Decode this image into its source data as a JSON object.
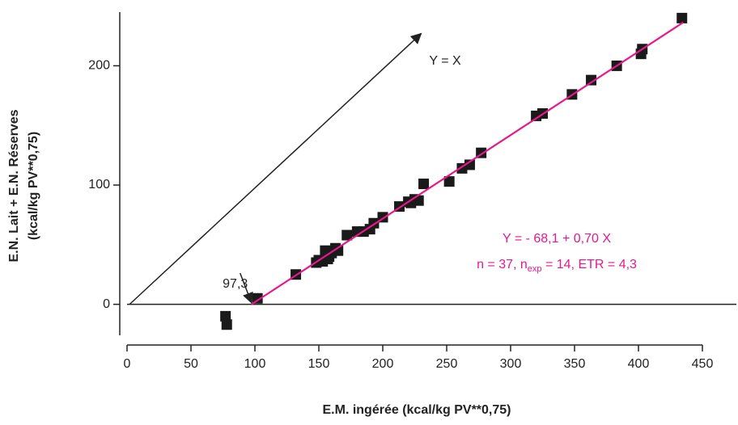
{
  "chart_data": {
    "type": "scatter",
    "x_label": "E.M. ingérée (kcal/kg PV**0,75)",
    "y_label": [
      "E.N. Lait + E.N. Réserves",
      "(kcal/kg PV**0,75)"
    ],
    "xlim": [
      0,
      450
    ],
    "ylim": [
      -26,
      245
    ],
    "xticks": [
      0,
      50,
      100,
      150,
      200,
      250,
      300,
      350,
      400,
      450
    ],
    "yticks": [
      0,
      100,
      200
    ],
    "series": [
      {
        "color": "#1a1a1a",
        "x": [
          77,
          78,
          102,
          132,
          148,
          150,
          153,
          155,
          157,
          158,
          160,
          163,
          165,
          172,
          180,
          185,
          190,
          193,
          200,
          213,
          220,
          222,
          225,
          228,
          232,
          252,
          262,
          268,
          277,
          320,
          325,
          348,
          363,
          383,
          402,
          403,
          434
        ],
        "values": [
          -10,
          -17,
          5,
          25,
          35,
          37,
          36,
          45,
          38,
          40,
          43,
          47,
          45,
          58,
          61,
          61,
          63,
          68,
          73,
          82,
          86,
          85,
          88,
          87,
          101,
          103,
          114,
          117,
          127,
          158,
          160,
          176,
          188,
          200,
          210,
          214,
          240
        ]
      }
    ],
    "fit": {
      "intercept": -68.1,
      "slope": 0.7,
      "x_range": [
        97.3,
        435
      ],
      "color": "#e6198a"
    },
    "identity_arrow": {
      "x": [
        2,
        230
      ],
      "y": [
        0,
        227
      ],
      "label": "Y = X"
    },
    "intercept_annotation": {
      "x": 97.3,
      "label": "97,3"
    },
    "equation": "Y = - 68,1 + 0,70 X",
    "stats": [
      "n = 37, n",
      "exp",
      " = 14, ETR = 4,3"
    ]
  }
}
